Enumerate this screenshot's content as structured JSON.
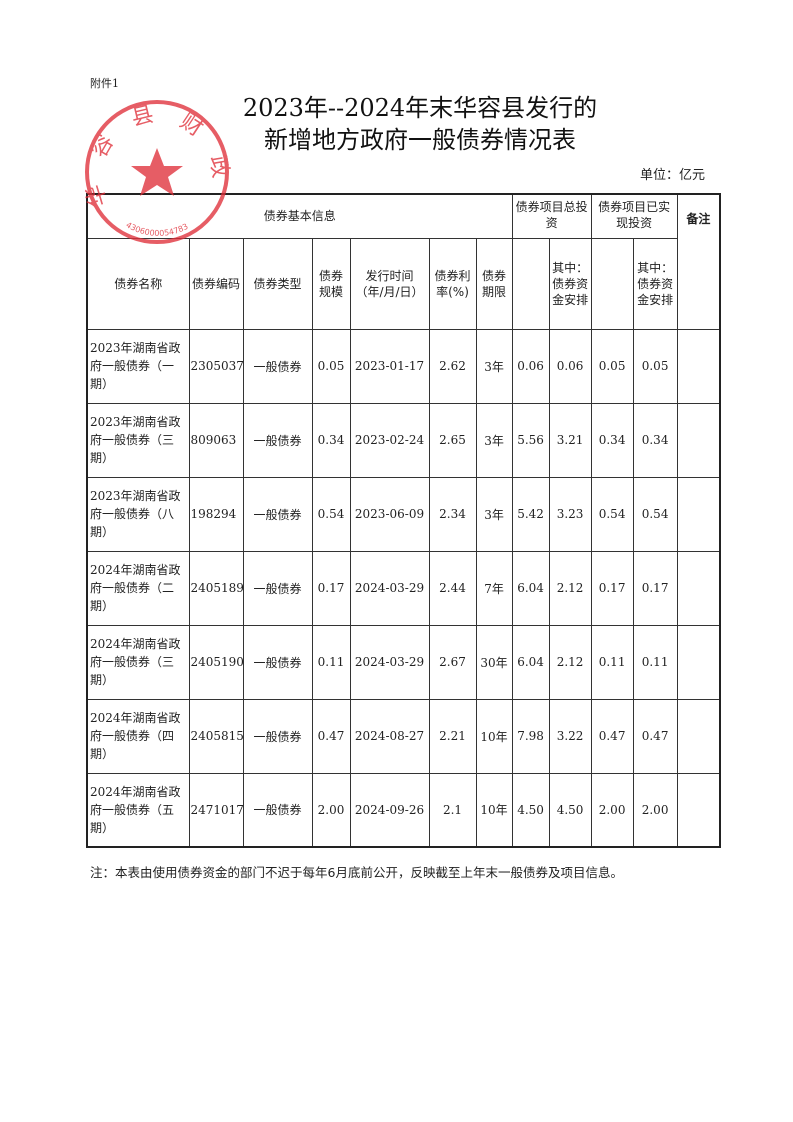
{
  "attachment": "附件1",
  "title_line1": "2023年--2024年末华容县发行的",
  "title_line2": "新增地方政府一般债券情况表",
  "unit": "单位：亿元",
  "stamp": {
    "text": "华容县财政局",
    "number": "4306000054783",
    "color": "#e0303a"
  },
  "headers": {
    "basic_info": "债券基本信息",
    "total_investment": "债券项目总投资",
    "realized_investment": "债券项目已实现投资",
    "remark": "备注",
    "name": "债券名称",
    "code": "债券编码",
    "type": "债券类型",
    "scale": "债券规模",
    "issue_date": "发行时间（年/月/日）",
    "rate": "债券利率(%)",
    "term": "债券期限",
    "total_of_which": "其中：债券资金安排",
    "realized_of_which": "其中：债券资金安排"
  },
  "rows": [
    {
      "name": "2023年湖南省政府一般债券（一期）",
      "code": "2305037",
      "type": "一般债券",
      "scale": "0.05",
      "date": "2023-01-17",
      "rate": "2.62",
      "term": "3年",
      "total": "0.06",
      "total_bond": "0.06",
      "realized": "0.05",
      "realized_bond": "0.05",
      "remark": ""
    },
    {
      "name": "2023年湖南省政府一般债券（三期）",
      "code": "809063",
      "type": "一般债券",
      "scale": "0.34",
      "date": "2023-02-24",
      "rate": "2.65",
      "term": "3年",
      "total": "5.56",
      "total_bond": "3.21",
      "realized": "0.34",
      "realized_bond": "0.34",
      "remark": ""
    },
    {
      "name": "2023年湖南省政府一般债券（八期）",
      "code": "198294",
      "type": "一般债券",
      "scale": "0.54",
      "date": "2023-06-09",
      "rate": "2.34",
      "term": "3年",
      "total": "5.42",
      "total_bond": "3.23",
      "realized": "0.54",
      "realized_bond": "0.54",
      "remark": ""
    },
    {
      "name": "2024年湖南省政府一般债券（二期）",
      "code": "2405189",
      "type": "一般债券",
      "scale": "0.17",
      "date": "2024-03-29",
      "rate": "2.44",
      "term": "7年",
      "total": "6.04",
      "total_bond": "2.12",
      "realized": "0.17",
      "realized_bond": "0.17",
      "remark": ""
    },
    {
      "name": "2024年湖南省政府一般债券（三期）",
      "code": "2405190",
      "type": "一般债券",
      "scale": "0.11",
      "date": "2024-03-29",
      "rate": "2.67",
      "term": "30年",
      "total": "6.04",
      "total_bond": "2.12",
      "realized": "0.11",
      "realized_bond": "0.11",
      "remark": ""
    },
    {
      "name": "2024年湖南省政府一般债券（四期）",
      "code": "2405815",
      "type": "一般债券",
      "scale": "0.47",
      "date": "2024-08-27",
      "rate": "2.21",
      "term": "10年",
      "total": "7.98",
      "total_bond": "3.22",
      "realized": "0.47",
      "realized_bond": "0.47",
      "remark": ""
    },
    {
      "name": "2024年湖南省政府一般债券（五期）",
      "code": "2471017",
      "type": "一般债券",
      "scale": "2.00",
      "date": "2024-09-26",
      "rate": "2.1",
      "term": "10年",
      "total": "4.50",
      "total_bond": "4.50",
      "realized": "2.00",
      "realized_bond": "2.00",
      "remark": ""
    }
  ],
  "note": "注：本表由使用债券资金的部门不迟于每年6月底前公开，反映截至上年末一般债券及项目信息。"
}
